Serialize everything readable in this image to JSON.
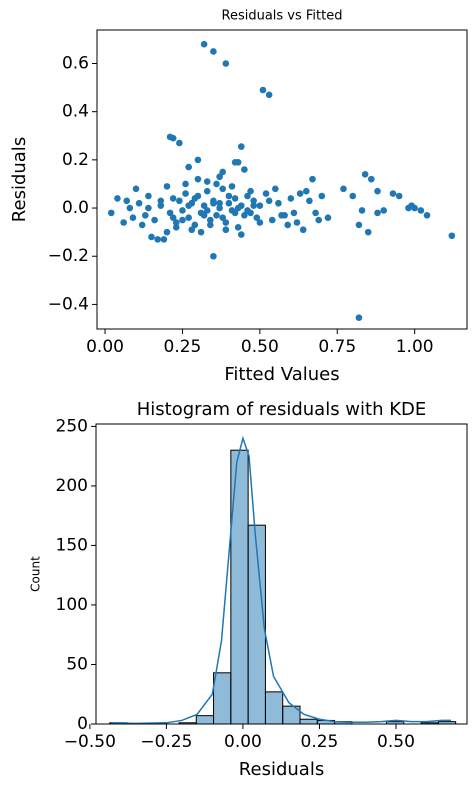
{
  "chart_data": [
    {
      "type": "scatter",
      "title": "Residuals vs Fitted",
      "x_label": "Fitted Values",
      "y_label": "Residuals",
      "color": "#1f77b4",
      "xlim": [
        -0.026,
        1.169
      ],
      "ylim": [
        -0.502,
        0.739
      ],
      "xticks": [
        {
          "value": 0,
          "label": "0.00"
        },
        {
          "value": 0.25,
          "label": "0.25"
        },
        {
          "value": 0.5,
          "label": "0.50"
        },
        {
          "value": 0.75,
          "label": "0.75"
        },
        {
          "value": 1,
          "label": "1.00"
        }
      ],
      "yticks": [
        {
          "value": -0.4,
          "label": "−0.4"
        },
        {
          "value": -0.2,
          "label": "−0.2"
        },
        {
          "value": 0,
          "label": "0.0"
        },
        0.2,
        0.4,
        0.6
      ],
      "x": [
        0.32,
        0.35,
        0.39,
        0.51,
        0.53,
        0.21,
        0.22,
        0.24,
        0.44,
        0.82,
        1.12,
        0.35,
        0.3,
        0.42,
        0.43,
        0.27,
        0.38,
        0.45,
        0.84,
        0.86,
        0.67,
        0.88,
        0.77,
        0.93,
        0.95,
        0.82,
        0.85,
        0.98,
        1.0,
        1.02,
        1.04,
        0.99,
        0.88,
        0.9,
        0.83,
        0.8,
        0.02,
        0.04,
        0.06,
        0.08,
        0.1,
        0.12,
        0.15,
        0.17,
        0.19,
        0.2,
        0.11,
        0.13,
        0.14,
        0.16,
        0.18,
        0.21,
        0.22,
        0.23,
        0.24,
        0.25,
        0.26,
        0.27,
        0.28,
        0.29,
        0.3,
        0.31,
        0.32,
        0.33,
        0.34,
        0.35,
        0.36,
        0.37,
        0.38,
        0.39,
        0.4,
        0.41,
        0.42,
        0.43,
        0.44,
        0.45,
        0.46,
        0.47,
        0.48,
        0.49,
        0.5,
        0.52,
        0.54,
        0.56,
        0.58,
        0.6,
        0.62,
        0.64,
        0.66,
        0.68,
        0.7,
        0.72,
        0.2,
        0.23,
        0.26,
        0.28,
        0.3,
        0.31,
        0.33,
        0.34,
        0.36,
        0.37,
        0.39,
        0.41,
        0.44,
        0.47,
        0.5,
        0.55,
        0.59,
        0.63,
        0.07,
        0.09,
        0.25,
        0.29,
        0.32,
        0.35,
        0.38,
        0.4,
        0.43,
        0.46,
        0.53,
        0.61,
        0.65,
        0.69,
        0.14,
        0.18,
        0.22,
        0.27,
        0.33,
        0.37,
        0.42,
        0.48,
        0.57
      ],
      "values": [
        0.68,
        0.65,
        0.6,
        0.49,
        0.47,
        0.295,
        0.29,
        0.27,
        0.255,
        -0.455,
        -0.115,
        -0.2,
        0.2,
        0.19,
        0.19,
        0.17,
        0.15,
        0.16,
        0.14,
        0.12,
        0.12,
        0.07,
        0.08,
        0.06,
        0.05,
        -0.07,
        -0.1,
        0.0,
        0.0,
        -0.01,
        -0.03,
        0.01,
        -0.02,
        -0.01,
        -0.01,
        0.05,
        -0.02,
        0.04,
        -0.06,
        0.0,
        0.08,
        -0.07,
        -0.12,
        -0.13,
        -0.13,
        -0.1,
        0.02,
        -0.03,
        0.05,
        -0.05,
        0.01,
        -0.02,
        0.04,
        -0.06,
        0.03,
        -0.01,
        0.06,
        -0.04,
        0.02,
        -0.07,
        0.05,
        -0.02,
        0.01,
        0.07,
        -0.05,
        0.03,
        -0.03,
        0.0,
        0.08,
        -0.06,
        0.02,
        -0.01,
        0.04,
        -0.08,
        0.01,
        -0.03,
        0.05,
        -0.02,
        0.03,
        -0.04,
        0.01,
        0.06,
        -0.05,
        0.02,
        -0.03,
        0.04,
        -0.06,
        -0.09,
        0.03,
        -0.02,
        0.05,
        -0.04,
        0.09,
        -0.08,
        0.1,
        -0.09,
        0.12,
        -0.1,
        0.11,
        -0.07,
        0.1,
        0.13,
        -0.09,
        0.09,
        -0.11,
        0.07,
        -0.06,
        0.08,
        -0.07,
        0.06,
        0.03,
        -0.04,
        -0.05,
        0.04,
        -0.03,
        0.02,
        -0.04,
        0.05,
        0.0,
        -0.01,
        0.03,
        -0.02,
        0.07,
        -0.05,
        0.0,
        0.03,
        -0.04,
        0.01,
        -0.01,
        0.02,
        -0.02,
        0.01,
        -0.03
      ]
    },
    {
      "type": "histogram",
      "title": "Histogram of residuals with KDE",
      "x_label": "Residuals",
      "y_label": "Count",
      "color": "#1f77b4",
      "xlim": [
        -0.48,
        0.732
      ],
      "ylim": [
        0,
        252
      ],
      "xticks": [
        {
          "value": -0.5,
          "label": "−0.50"
        },
        {
          "value": -0.25,
          "label": "−0.25"
        },
        {
          "value": 0,
          "label": "0.00"
        },
        {
          "value": 0.25,
          "label": "0.25"
        },
        {
          "value": 0.5,
          "label": "0.50"
        }
      ],
      "yticks": [
        0,
        50,
        100,
        150,
        200,
        250
      ],
      "bins": [
        -0.435,
        -0.3785,
        -0.322,
        -0.2655,
        -0.209,
        -0.1525,
        -0.096,
        -0.0395,
        0.017,
        0.0735,
        0.13,
        0.1865,
        0.243,
        0.2995,
        0.356,
        0.4125,
        0.469,
        0.5255,
        0.582,
        0.6385,
        0.695
      ],
      "values": [
        1,
        0,
        0,
        0,
        1,
        7,
        43,
        230,
        167,
        27,
        15,
        4,
        3,
        2,
        0,
        0,
        2,
        0,
        1,
        2
      ],
      "kde": {
        "x": [
          -0.43,
          -0.35,
          -0.25,
          -0.2,
          -0.15,
          -0.1,
          -0.07,
          -0.04,
          -0.02,
          0,
          0.02,
          0.04,
          0.07,
          0.1,
          0.15,
          0.2,
          0.25,
          0.3,
          0.35,
          0.4,
          0.45,
          0.5,
          0.55,
          0.6,
          0.65,
          0.68
        ],
        "y": [
          1,
          0.5,
          1,
          3,
          8,
          25,
          70,
          160,
          220,
          240,
          225,
          160,
          80,
          40,
          18,
          8,
          4,
          2,
          1.5,
          1.5,
          2,
          3,
          2,
          2,
          3,
          3
        ]
      }
    }
  ]
}
